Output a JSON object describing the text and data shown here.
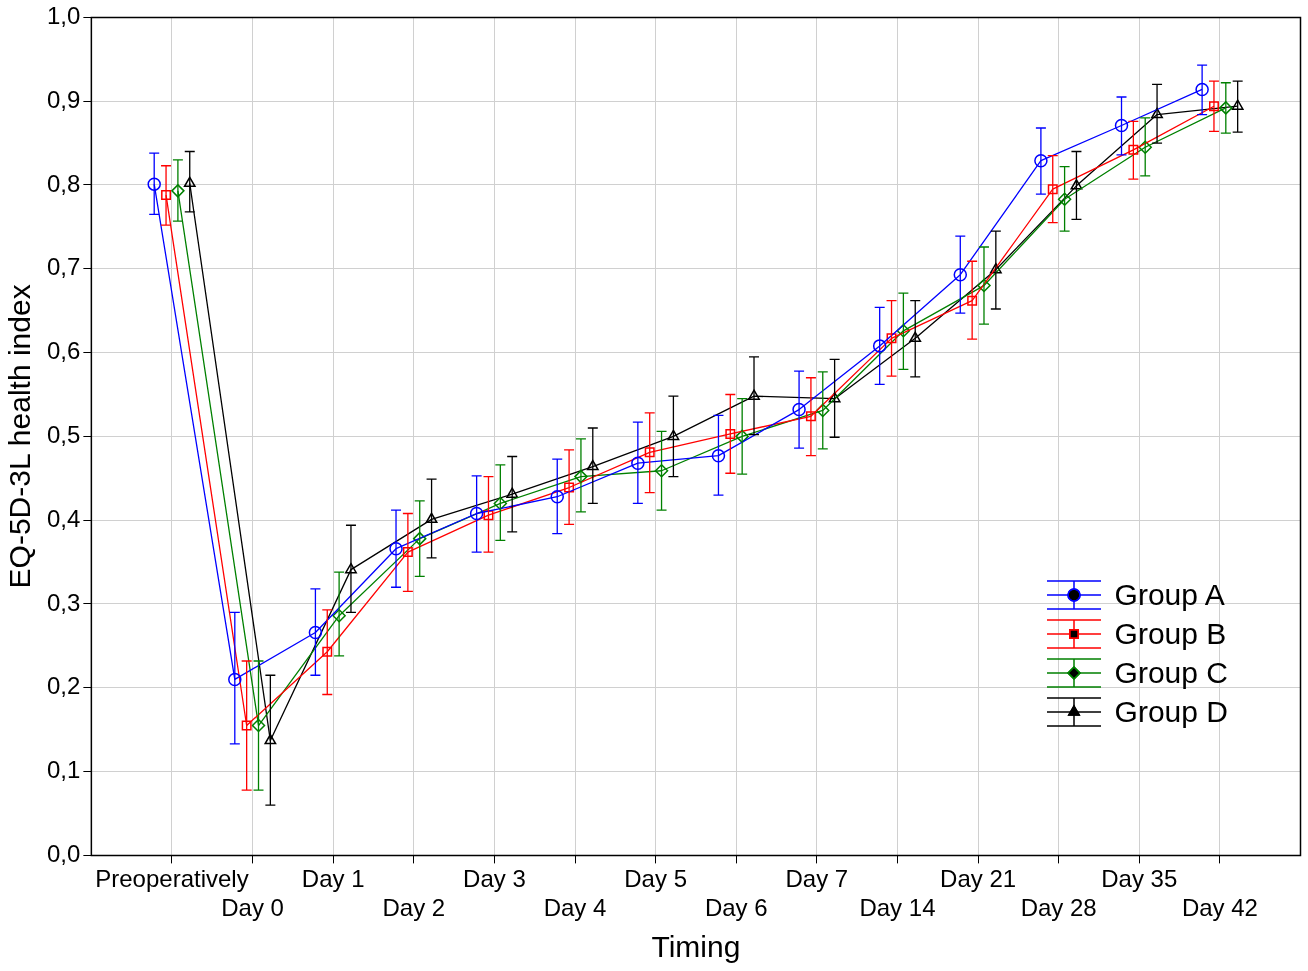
{
  "chart_data": {
    "type": "line",
    "xlabel": "Timing",
    "ylabel": "EQ-5D-3L health index",
    "categories": [
      "Preoperatively",
      "Day 0",
      "Day 1",
      "Day 2",
      "Day 3",
      "Day 4",
      "Day 5",
      "Day 6",
      "Day 7",
      "Day 14",
      "Day 21",
      "Day 28",
      "Day 35",
      "Day 42"
    ],
    "ylim": [
      0,
      1
    ],
    "yticks": [
      {
        "value": 0,
        "label": "0,0"
      },
      {
        "value": 0.1,
        "label": "0,1"
      },
      {
        "value": 0.2,
        "label": "0,2"
      },
      {
        "value": 0.3,
        "label": "0,3"
      },
      {
        "value": 0.4,
        "label": "0,4"
      },
      {
        "value": 0.5,
        "label": "0,5"
      },
      {
        "value": 0.6,
        "label": "0,6"
      },
      {
        "value": 0.7,
        "label": "0,7"
      },
      {
        "value": 0.8,
        "label": "0,8"
      },
      {
        "value": 0.9,
        "label": "0,9"
      },
      {
        "value": 1,
        "label": "1,0"
      }
    ],
    "grid": true,
    "legend": "bottom right",
    "line_style": "solid",
    "series": [
      {
        "name": "Group A",
        "color": "#0000ff",
        "marker": "circle",
        "values": [
          0.801,
          0.21,
          0.266,
          0.366,
          0.408,
          0.428,
          0.468,
          0.477,
          0.532,
          0.608,
          0.693,
          0.829,
          0.871,
          0.914
        ],
        "errors": [
          [
            0.765,
            0.838
          ],
          [
            0.133,
            0.29
          ],
          [
            0.215,
            0.318
          ],
          [
            0.32,
            0.412
          ],
          [
            0.362,
            0.453
          ],
          [
            0.384,
            0.473
          ],
          [
            0.42,
            0.517
          ],
          [
            0.43,
            0.525
          ],
          [
            0.486,
            0.578
          ],
          [
            0.562,
            0.654
          ],
          [
            0.647,
            0.739
          ],
          [
            0.789,
            0.868
          ],
          [
            0.836,
            0.905
          ],
          [
            0.884,
            0.943
          ]
        ]
      },
      {
        "name": "Group B",
        "color": "#ff0000",
        "marker": "square",
        "values": [
          0.788,
          0.155,
          0.243,
          0.362,
          0.406,
          0.439,
          0.481,
          0.503,
          0.524,
          0.617,
          0.662,
          0.795,
          0.842,
          0.894
        ],
        "errors": [
          [
            0.752,
            0.823
          ],
          [
            0.078,
            0.232
          ],
          [
            0.192,
            0.293
          ],
          [
            0.315,
            0.408
          ],
          [
            0.362,
            0.452
          ],
          [
            0.395,
            0.484
          ],
          [
            0.433,
            0.528
          ],
          [
            0.456,
            0.55
          ],
          [
            0.477,
            0.57
          ],
          [
            0.572,
            0.662
          ],
          [
            0.616,
            0.709
          ],
          [
            0.755,
            0.835
          ],
          [
            0.807,
            0.876
          ],
          [
            0.864,
            0.924
          ]
        ]
      },
      {
        "name": "Group C",
        "color": "#008000",
        "marker": "diamond",
        "values": [
          0.793,
          0.155,
          0.286,
          0.378,
          0.42,
          0.452,
          0.459,
          0.5,
          0.531,
          0.626,
          0.68,
          0.783,
          0.845,
          0.892
        ],
        "errors": [
          [
            0.757,
            0.83
          ],
          [
            0.078,
            0.232
          ],
          [
            0.238,
            0.338
          ],
          [
            0.333,
            0.423
          ],
          [
            0.376,
            0.466
          ],
          [
            0.41,
            0.497
          ],
          [
            0.412,
            0.506
          ],
          [
            0.455,
            0.545
          ],
          [
            0.485,
            0.577
          ],
          [
            0.58,
            0.671
          ],
          [
            0.634,
            0.726
          ],
          [
            0.745,
            0.822
          ],
          [
            0.811,
            0.88
          ],
          [
            0.862,
            0.922
          ]
        ]
      },
      {
        "name": "Group D",
        "color": "#000000",
        "marker": "triangle",
        "values": [
          0.802,
          0.137,
          0.341,
          0.401,
          0.431,
          0.464,
          0.5,
          0.548,
          0.545,
          0.617,
          0.699,
          0.799,
          0.884,
          0.894
        ],
        "errors": [
          [
            0.768,
            0.84
          ],
          [
            0.06,
            0.215
          ],
          [
            0.29,
            0.394
          ],
          [
            0.355,
            0.449
          ],
          [
            0.386,
            0.476
          ],
          [
            0.42,
            0.51
          ],
          [
            0.452,
            0.548
          ],
          [
            0.502,
            0.595
          ],
          [
            0.499,
            0.592
          ],
          [
            0.571,
            0.662
          ],
          [
            0.652,
            0.745
          ],
          [
            0.759,
            0.84
          ],
          [
            0.85,
            0.92
          ],
          [
            0.863,
            0.924
          ]
        ]
      }
    ]
  }
}
